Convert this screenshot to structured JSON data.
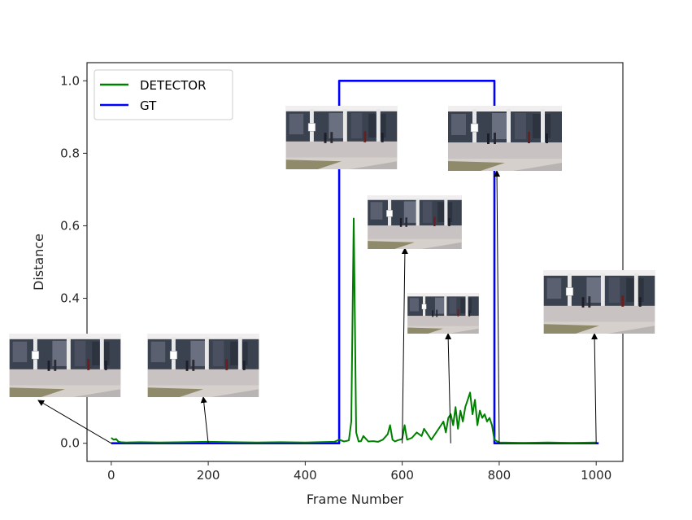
{
  "chart_data": {
    "type": "line",
    "title": "",
    "xlabel": "Frame Number",
    "ylabel": "Distance",
    "xlim": [
      -50,
      1055
    ],
    "ylim": [
      -0.05,
      1.05
    ],
    "xticks": [
      0,
      200,
      400,
      600,
      800,
      1000
    ],
    "yticks": [
      0.0,
      0.2,
      0.4,
      0.6,
      0.8,
      1.0
    ],
    "xtick_labels": [
      "0",
      "200",
      "400",
      "600",
      "800",
      "1000"
    ],
    "ytick_labels": [
      "0.0",
      "0.2",
      "0.4",
      "0.6",
      "0.8",
      "1.0"
    ],
    "grid": false,
    "legend_position": "top-left",
    "series": [
      {
        "name": "DETECTOR",
        "color": "#008000",
        "x": [
          0,
          5,
          10,
          15,
          20,
          30,
          60,
          100,
          150,
          200,
          250,
          300,
          350,
          400,
          460,
          470,
          480,
          490,
          495,
          500,
          505,
          510,
          515,
          520,
          530,
          540,
          550,
          560,
          570,
          575,
          580,
          585,
          590,
          600,
          605,
          610,
          620,
          630,
          640,
          645,
          650,
          660,
          670,
          680,
          685,
          690,
          695,
          700,
          705,
          710,
          715,
          720,
          725,
          730,
          735,
          740,
          745,
          750,
          755,
          760,
          765,
          770,
          775,
          780,
          785,
          790,
          800,
          850,
          900,
          950,
          1000
        ],
        "y": [
          0.015,
          0.01,
          0.012,
          0.004,
          0.003,
          0.002,
          0.003,
          0.002,
          0.003,
          0.004,
          0.003,
          0.002,
          0.003,
          0.002,
          0.004,
          0.01,
          0.005,
          0.008,
          0.06,
          0.62,
          0.03,
          0.005,
          0.006,
          0.02,
          0.005,
          0.006,
          0.004,
          0.01,
          0.025,
          0.05,
          0.01,
          0.005,
          0.008,
          0.012,
          0.05,
          0.01,
          0.015,
          0.03,
          0.02,
          0.04,
          0.03,
          0.01,
          0.03,
          0.05,
          0.06,
          0.03,
          0.07,
          0.08,
          0.05,
          0.1,
          0.04,
          0.09,
          0.06,
          0.1,
          0.12,
          0.14,
          0.08,
          0.12,
          0.05,
          0.09,
          0.07,
          0.08,
          0.06,
          0.07,
          0.05,
          0.01,
          0.002,
          0.001,
          0.002,
          0.001,
          0.002
        ]
      },
      {
        "name": "GT",
        "color": "#0000ff",
        "x": [
          0,
          470,
          470,
          790,
          790,
          1005
        ],
        "y": [
          0,
          0,
          1,
          1,
          0,
          0
        ]
      }
    ],
    "insets": [
      {
        "name": "frame-0",
        "frame": 0,
        "y": 0
      },
      {
        "name": "frame-200",
        "frame": 200,
        "y": 0
      },
      {
        "name": "frame-600",
        "frame": 600,
        "y": 0
      },
      {
        "name": "frame-700",
        "frame": 700,
        "y": 0
      },
      {
        "name": "frame-800",
        "frame": 800,
        "y": 0
      },
      {
        "name": "frame-1000",
        "frame": 1000,
        "y": 0
      }
    ]
  },
  "colors": {
    "axis": "#262626",
    "legend_border": "#cccccc"
  }
}
